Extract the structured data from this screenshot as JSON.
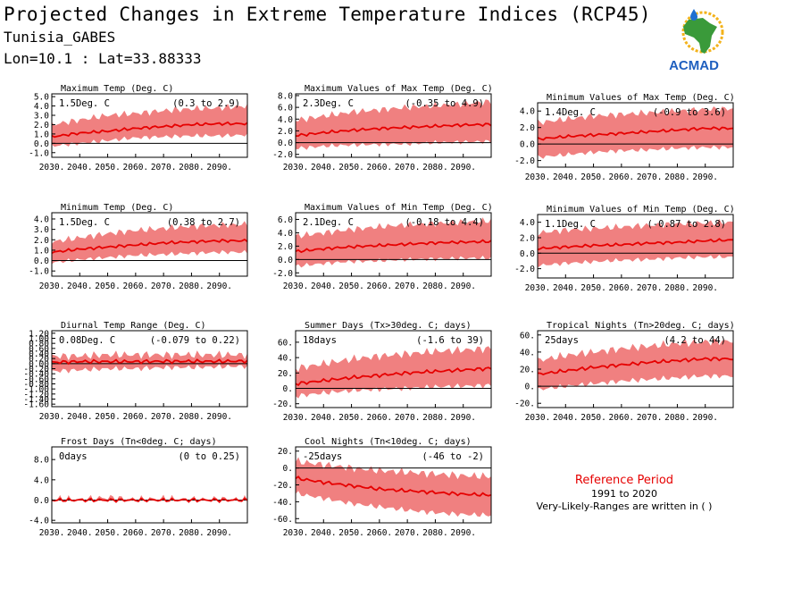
{
  "header": {
    "title": "Projected Changes in Extreme Temperature Indices (RCP45)",
    "location": "Tunisia_GABES",
    "coords": "Lon=10.1 : Lat=33.88333"
  },
  "logo": {
    "text": "ACMAD",
    "icon": "africa-map-logo"
  },
  "colors": {
    "line": "#e60000",
    "band": "#f08080",
    "zero": "#000000"
  },
  "reference": {
    "title": "Reference Period",
    "years": "1991 to 2020",
    "note": "Very-Likely-Ranges are written in ( )"
  },
  "chart_data": [
    {
      "type": "area",
      "title": "Maximum Temp (Deg. C)",
      "change": "1.5Deg. C",
      "range": "(0.3 to 2.9)",
      "x_ticks": [
        "2030.",
        "2040.",
        "2050.",
        "2060.",
        "2070.",
        "2080.",
        "2090."
      ],
      "y_ticks": [
        "5.0",
        "4.0",
        "3.0",
        "2.0",
        "1.0",
        "0.0",
        "-1.0"
      ],
      "ylim": [
        -1.5,
        5.3
      ],
      "xlim": [
        2030,
        2100
      ],
      "series": [
        {
          "x": [
            2030,
            2040,
            2050,
            2060,
            2070,
            2080,
            2090,
            2100
          ],
          "median": [
            0.7,
            1.1,
            1.3,
            1.6,
            1.8,
            2.0,
            2.1,
            2.1
          ],
          "low": [
            -0.3,
            0.0,
            0.3,
            0.6,
            0.7,
            0.8,
            0.8,
            0.9
          ],
          "high": [
            2.0,
            2.5,
            3.0,
            3.2,
            3.5,
            3.7,
            3.8,
            4.0
          ]
        }
      ]
    },
    {
      "type": "area",
      "title": "Maximum Values of Max Temp (Deg. C)",
      "change": "2.3Deg. C",
      "range": "(-0.35 to 4.9)",
      "x_ticks": [
        "2030.",
        "2040.",
        "2050.",
        "2060.",
        "2070.",
        "2080.",
        "2090."
      ],
      "y_ticks": [
        "8.0",
        "6.0",
        "4.0",
        "2.0",
        "0.0",
        "-2.0"
      ],
      "ylim": [
        -2.5,
        8.3
      ],
      "xlim": [
        2030,
        2100
      ],
      "series": [
        {
          "x": [
            2030,
            2040,
            2050,
            2060,
            2070,
            2080,
            2090,
            2100
          ],
          "median": [
            1.2,
            1.7,
            2.1,
            2.4,
            2.6,
            2.8,
            3.0,
            3.1
          ],
          "low": [
            -1.0,
            -0.6,
            -0.4,
            -0.3,
            -0.2,
            0.0,
            0.1,
            0.2
          ],
          "high": [
            3.8,
            4.5,
            5.2,
            5.6,
            6.0,
            6.3,
            6.6,
            7.0
          ]
        }
      ]
    },
    {
      "type": "area",
      "title": "Minimum Values of Max Temp (Deg. C)",
      "change": "1.4Deg. C",
      "range": "(-0.9 to 3.6)",
      "x_ticks": [
        "2030.",
        "2040.",
        "2050.",
        "2060.",
        "2070.",
        "2080.",
        "2090."
      ],
      "y_ticks": [
        "4.0",
        "2.0",
        "0.0",
        "-2.0"
      ],
      "ylim": [
        -2.8,
        5.0
      ],
      "xlim": [
        2030,
        2100
      ],
      "series": [
        {
          "x": [
            2030,
            2040,
            2050,
            2060,
            2070,
            2080,
            2090,
            2100
          ],
          "median": [
            0.6,
            0.9,
            1.1,
            1.3,
            1.5,
            1.7,
            1.9,
            1.9
          ],
          "low": [
            -1.6,
            -1.3,
            -1.0,
            -0.8,
            -0.7,
            -0.5,
            -0.4,
            -0.4
          ],
          "high": [
            2.6,
            3.0,
            3.4,
            3.6,
            3.8,
            4.0,
            4.2,
            4.3
          ]
        }
      ]
    },
    {
      "type": "area",
      "title": "Minimum Temp (Deg. C)",
      "change": "1.5Deg. C",
      "range": "(0.38 to 2.7)",
      "x_ticks": [
        "2030.",
        "2040.",
        "2050.",
        "2060.",
        "2070.",
        "2080.",
        "2090."
      ],
      "y_ticks": [
        "4.0",
        "3.0",
        "2.0",
        "1.0",
        "0.0",
        "-1.0"
      ],
      "ylim": [
        -1.5,
        4.6
      ],
      "xlim": [
        2030,
        2100
      ],
      "series": [
        {
          "x": [
            2030,
            2040,
            2050,
            2060,
            2070,
            2080,
            2090,
            2100
          ],
          "median": [
            0.8,
            1.1,
            1.3,
            1.5,
            1.7,
            1.8,
            1.9,
            1.9
          ],
          "low": [
            -0.2,
            0.1,
            0.3,
            0.5,
            0.6,
            0.7,
            0.8,
            0.8
          ],
          "high": [
            1.8,
            2.2,
            2.6,
            2.9,
            3.1,
            3.3,
            3.4,
            3.5
          ]
        }
      ]
    },
    {
      "type": "area",
      "title": "Maximum Values of Min Temp (Deg. C)",
      "change": "2.1Deg. C",
      "range": "(-0.18 to 4.4)",
      "x_ticks": [
        "2030.",
        "2040.",
        "2050.",
        "2060.",
        "2070.",
        "2080.",
        "2090."
      ],
      "y_ticks": [
        "6.0",
        "4.0",
        "2.0",
        "0.0",
        "-2.0"
      ],
      "ylim": [
        -2.5,
        7.0
      ],
      "xlim": [
        2030,
        2100
      ],
      "series": [
        {
          "x": [
            2030,
            2040,
            2050,
            2060,
            2070,
            2080,
            2090,
            2100
          ],
          "median": [
            1.2,
            1.6,
            1.9,
            2.1,
            2.3,
            2.5,
            2.6,
            2.7
          ],
          "low": [
            -1.0,
            -0.6,
            -0.3,
            -0.2,
            0.0,
            0.1,
            0.2,
            0.2
          ],
          "high": [
            3.5,
            4.0,
            4.5,
            4.9,
            5.2,
            5.4,
            5.6,
            5.8
          ]
        }
      ]
    },
    {
      "type": "area",
      "title": "Minimum Values of Min Temp (Deg. C)",
      "change": "1.1Deg. C",
      "range": "(-0.87 to 2.8)",
      "x_ticks": [
        "2030.",
        "2040.",
        "2050.",
        "2060.",
        "2070.",
        "2080.",
        "2090."
      ],
      "y_ticks": [
        "4.0",
        "2.0",
        "0.0",
        "-2.0"
      ],
      "ylim": [
        -3.2,
        5.0
      ],
      "xlim": [
        2030,
        2100
      ],
      "series": [
        {
          "x": [
            2030,
            2040,
            2050,
            2060,
            2070,
            2080,
            2090,
            2100
          ],
          "median": [
            0.6,
            0.8,
            1.0,
            1.1,
            1.3,
            1.4,
            1.6,
            1.7
          ],
          "low": [
            -1.6,
            -1.3,
            -1.1,
            -0.9,
            -0.8,
            -0.6,
            -0.5,
            -0.5
          ],
          "high": [
            2.6,
            3.0,
            3.2,
            3.4,
            3.6,
            3.8,
            3.9,
            4.0
          ]
        }
      ]
    },
    {
      "type": "area",
      "title": "Diurnal Temp Range (Deg. C)",
      "change": "0.08Deg. C",
      "range": "(-0.079 to 0.22)",
      "x_ticks": [
        "2030.",
        "2040.",
        "2050.",
        "2060.",
        "2070.",
        "2080.",
        "2090."
      ],
      "y_ticks": [
        "1.20",
        "1.00",
        "0.80",
        "0.60",
        "0.40",
        "0.20",
        "0.00",
        "-0.20",
        "-0.40",
        "-0.60",
        "-0.80",
        "-1.00",
        "-1.20",
        "-1.40",
        "-1.60"
      ],
      "ylim": [
        -1.7,
        1.3
      ],
      "xlim": [
        2030,
        2100
      ],
      "series": [
        {
          "x": [
            2030,
            2040,
            2050,
            2060,
            2070,
            2080,
            2090,
            2100
          ],
          "median": [
            0.05,
            0.08,
            0.08,
            0.08,
            0.09,
            0.09,
            0.09,
            0.1
          ],
          "low": [
            -0.3,
            -0.25,
            -0.2,
            -0.2,
            -0.15,
            -0.15,
            -0.12,
            -0.1
          ],
          "high": [
            0.3,
            0.3,
            0.35,
            0.35,
            0.35,
            0.35,
            0.35,
            0.35
          ]
        }
      ]
    },
    {
      "type": "area",
      "title": "Summer Days (Tx>30deg. C; days)",
      "change": "18days",
      "range": "(-1.6 to 39)",
      "x_ticks": [
        "2030.",
        "2040.",
        "2050.",
        "2060.",
        "2070.",
        "2080.",
        "2090."
      ],
      "y_ticks": [
        "60.",
        "40.",
        "20.",
        "0.",
        "-20."
      ],
      "ylim": [
        -25,
        75
      ],
      "xlim": [
        2030,
        2100
      ],
      "series": [
        {
          "x": [
            2030,
            2040,
            2050,
            2060,
            2070,
            2080,
            2090,
            2100
          ],
          "median": [
            6,
            10,
            14,
            17,
            20,
            22,
            24,
            26
          ],
          "low": [
            -10,
            -6,
            -3,
            -1,
            0,
            2,
            3,
            4
          ],
          "high": [
            26,
            32,
            38,
            42,
            45,
            48,
            50,
            52
          ]
        }
      ]
    },
    {
      "type": "area",
      "title": "Tropical Nights (Tn>20deg. C; days)",
      "change": "25days",
      "range": "(4.2 to 44)",
      "x_ticks": [
        "2030.",
        "2040.",
        "2050.",
        "2060.",
        "2070.",
        "2080.",
        "2090."
      ],
      "y_ticks": [
        "60.",
        "40.",
        "20.",
        "0.",
        "-20."
      ],
      "ylim": [
        -25,
        65
      ],
      "xlim": [
        2030,
        2100
      ],
      "series": [
        {
          "x": [
            2030,
            2040,
            2050,
            2060,
            2070,
            2080,
            2090,
            2100
          ],
          "median": [
            14,
            18,
            22,
            25,
            28,
            30,
            32,
            32
          ],
          "low": [
            -4,
            0,
            3,
            6,
            8,
            10,
            12,
            12
          ],
          "high": [
            30,
            36,
            40,
            44,
            47,
            50,
            52,
            53
          ]
        }
      ]
    },
    {
      "type": "area",
      "title": "Frost Days (Tn<0deg. C; days)",
      "change": "0days",
      "range": "(0 to 0.25)",
      "x_ticks": [
        "2030.",
        "2040.",
        "2050.",
        "2060.",
        "2070.",
        "2080.",
        "2090."
      ],
      "y_ticks": [
        "8.0",
        "4.0",
        "0.0",
        "-4.0"
      ],
      "ylim": [
        -4.5,
        10.5
      ],
      "xlim": [
        2030,
        2100
      ],
      "series": [
        {
          "x": [
            2030,
            2040,
            2050,
            2060,
            2070,
            2080,
            2090,
            2100
          ],
          "median": [
            0,
            0,
            0,
            0,
            0,
            0,
            0,
            0
          ],
          "low": [
            0,
            0,
            0,
            0,
            0,
            0,
            0,
            0
          ],
          "high": [
            0.3,
            0.1,
            0.5,
            0.1,
            0.3,
            0.1,
            0.2,
            0.1
          ]
        }
      ]
    },
    {
      "type": "area",
      "title": "Cool Nights (Tn<10deg. C; days)",
      "change": "-25days",
      "range": "(-46 to -2)",
      "x_ticks": [
        "2030.",
        "2040.",
        "2050.",
        "2060.",
        "2070.",
        "2080.",
        "2090."
      ],
      "y_ticks": [
        "20.",
        "0.",
        "-20.",
        "-40.",
        "-60."
      ],
      "ylim": [
        -65,
        25
      ],
      "xlim": [
        2030,
        2100
      ],
      "series": [
        {
          "x": [
            2030,
            2040,
            2050,
            2060,
            2070,
            2080,
            2090,
            2100
          ],
          "median": [
            -12,
            -17,
            -21,
            -25,
            -27,
            -29,
            -31,
            -32
          ],
          "low": [
            -30,
            -36,
            -42,
            -46,
            -50,
            -53,
            -55,
            -56
          ],
          "high": [
            8,
            4,
            0,
            -3,
            -5,
            -7,
            -9,
            -10
          ]
        }
      ]
    }
  ]
}
